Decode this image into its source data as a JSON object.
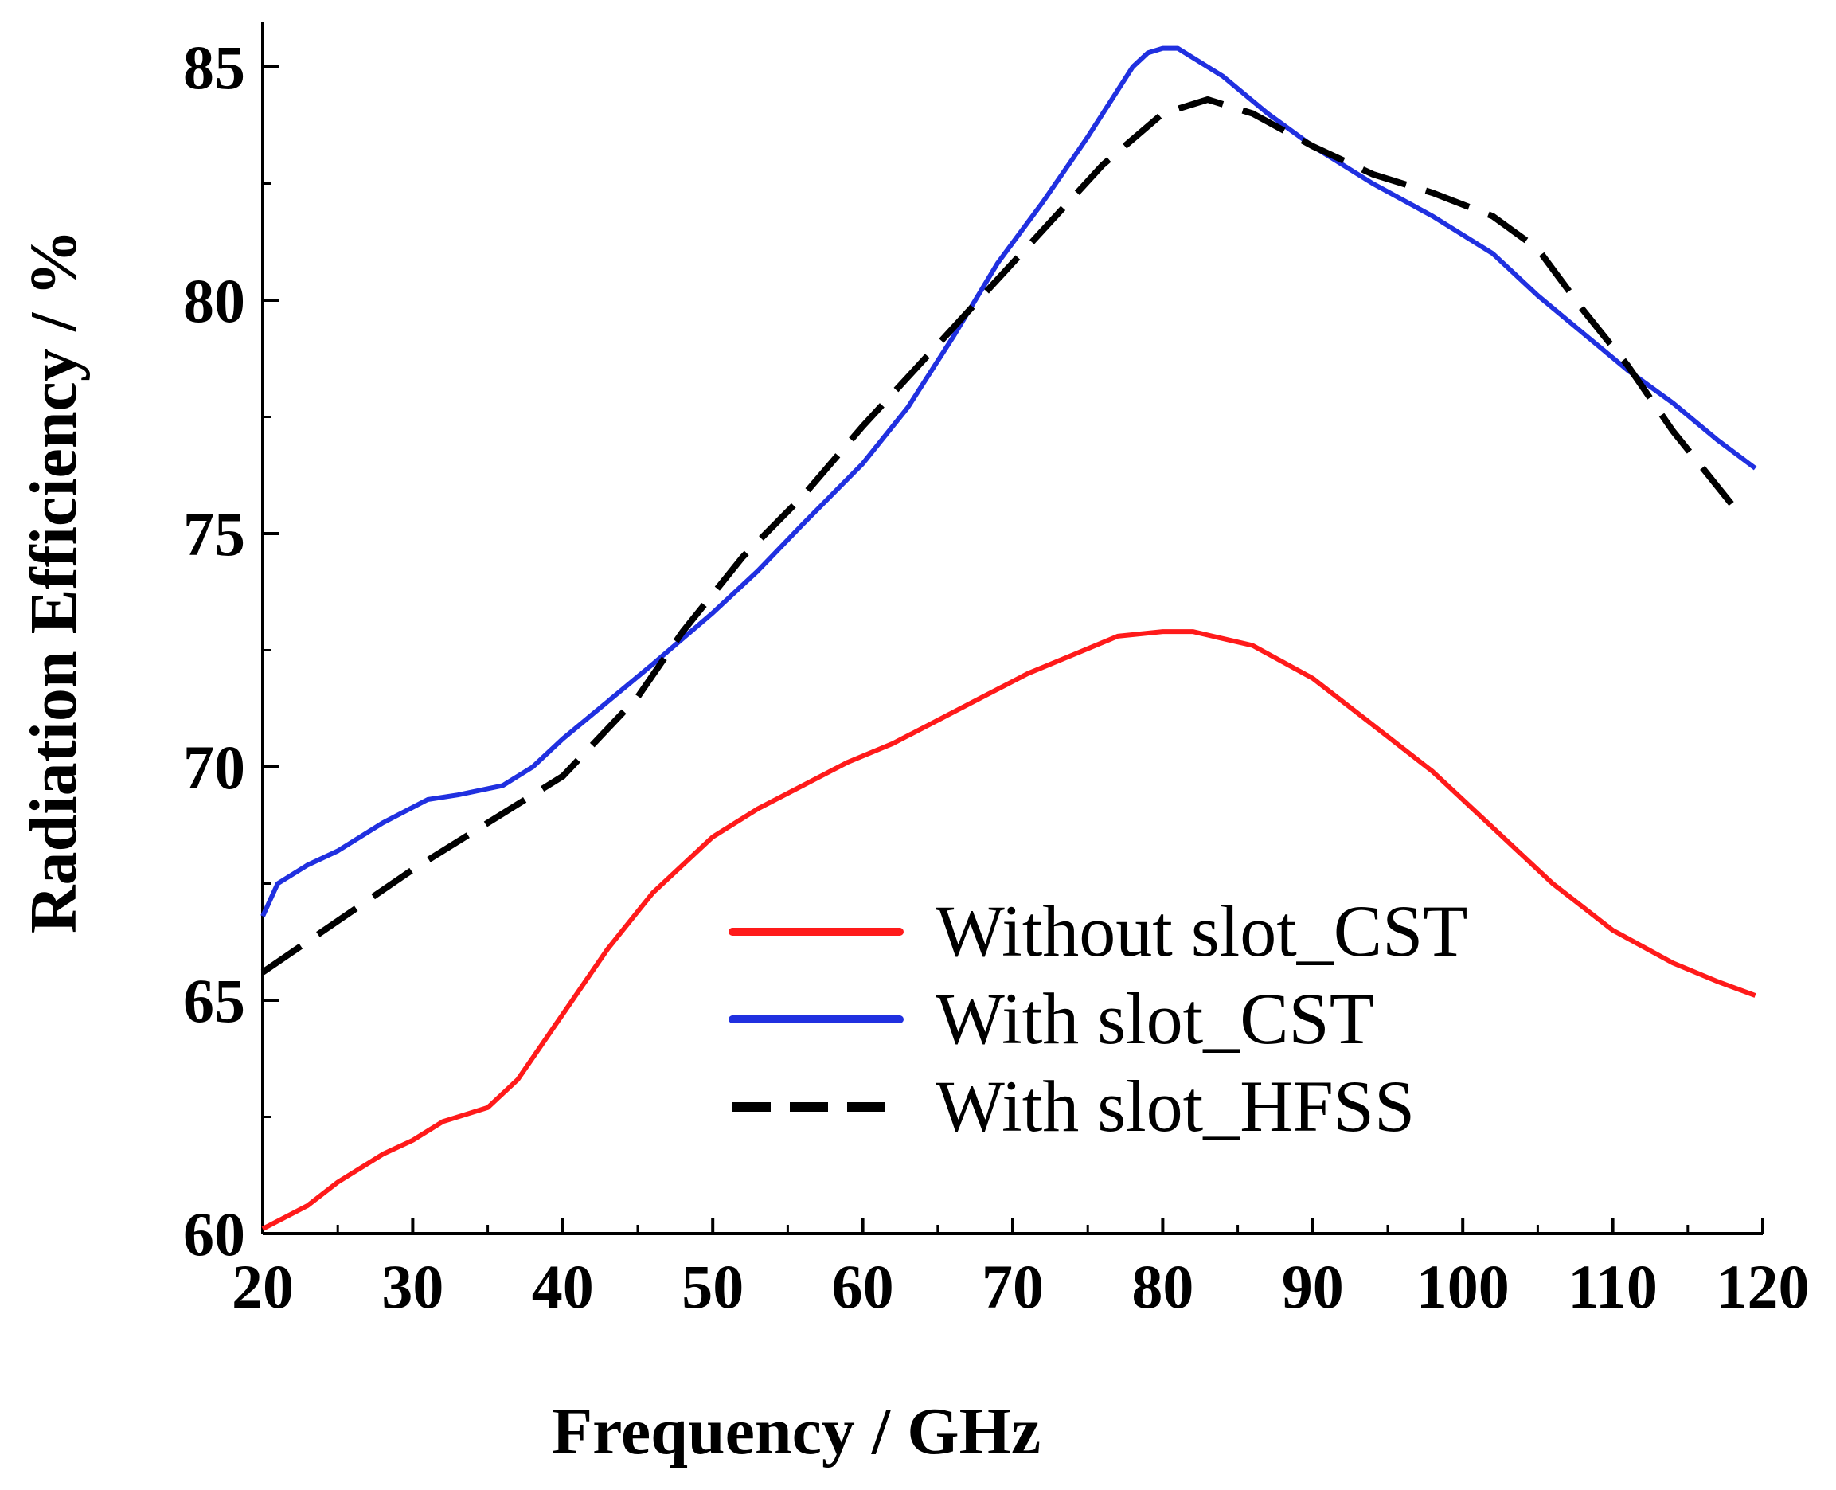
{
  "chart_data": {
    "type": "line",
    "title": "",
    "xlabel": "Frequency / GHz",
    "ylabel": "Radiation Efficiency / %",
    "xlim": [
      20,
      120
    ],
    "ylim": [
      60,
      86
    ],
    "xticks": [
      20,
      30,
      40,
      50,
      60,
      70,
      80,
      90,
      100,
      110,
      120
    ],
    "yticks": [
      60,
      65,
      70,
      75,
      80,
      85
    ],
    "grid": false,
    "legend_position": "bottom-right",
    "series": [
      {
        "name": "Without slot_CST",
        "color": "#ff1a1a",
        "style": "solid",
        "x": [
          20,
          23,
          25,
          28,
          30,
          32,
          35,
          37,
          40,
          43,
          46,
          50,
          53,
          56,
          59,
          62,
          65,
          68,
          71,
          74,
          77,
          80,
          82,
          86,
          90,
          94,
          98,
          102,
          106,
          110,
          114,
          117,
          119.5
        ],
        "y": [
          60.1,
          60.6,
          61.1,
          61.7,
          62.0,
          62.4,
          62.7,
          63.3,
          64.7,
          66.1,
          67.3,
          68.5,
          69.1,
          69.6,
          70.1,
          70.5,
          71.0,
          71.5,
          72.0,
          72.4,
          72.8,
          72.9,
          72.9,
          72.6,
          71.9,
          70.9,
          69.9,
          68.7,
          67.5,
          66.5,
          65.8,
          65.4,
          65.1
        ]
      },
      {
        "name": "With slot_CST",
        "color": "#2030e0",
        "style": "solid",
        "x": [
          20,
          21,
          23,
          25,
          28,
          31,
          33,
          36,
          38,
          40,
          43,
          46,
          50,
          53,
          56,
          60,
          63,
          66,
          69,
          72,
          75,
          77,
          78,
          79,
          80,
          81,
          82,
          84,
          87,
          90,
          94,
          98,
          102,
          105,
          108,
          111,
          114,
          117,
          119.5
        ],
        "y": [
          66.8,
          67.5,
          67.9,
          68.2,
          68.8,
          69.3,
          69.4,
          69.6,
          70.0,
          70.6,
          71.4,
          72.2,
          73.3,
          74.2,
          75.2,
          76.5,
          77.7,
          79.2,
          80.8,
          82.1,
          83.5,
          84.5,
          85.0,
          85.3,
          85.4,
          85.4,
          85.2,
          84.8,
          84.0,
          83.3,
          82.5,
          81.8,
          81.0,
          80.1,
          79.3,
          78.5,
          77.8,
          77.0,
          76.4
        ]
      },
      {
        "name": "With slot_HFSS",
        "color": "#000000",
        "style": "dashed",
        "x": [
          20,
          25,
          30,
          35,
          40,
          45,
          48,
          52,
          56,
          60,
          64,
          68,
          72,
          76,
          80,
          83,
          86,
          90,
          94,
          98,
          102,
          105,
          108,
          111,
          114,
          118
        ],
        "y": [
          65.6,
          66.7,
          67.8,
          68.8,
          69.8,
          71.5,
          72.9,
          74.5,
          75.8,
          77.3,
          78.7,
          80.1,
          81.5,
          82.9,
          84.0,
          84.3,
          84.0,
          83.3,
          82.7,
          82.3,
          81.8,
          81.1,
          79.8,
          78.6,
          77.2,
          75.6
        ]
      }
    ]
  }
}
